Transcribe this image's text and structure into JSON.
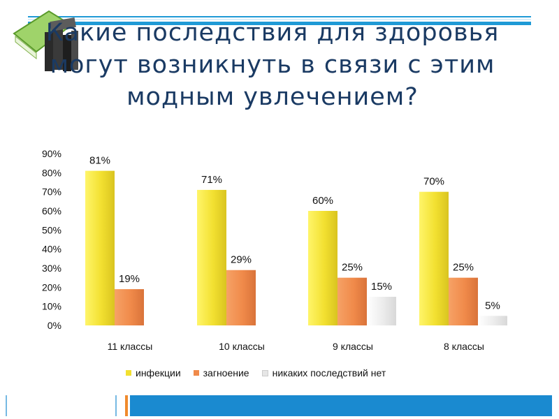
{
  "slide": {
    "title": "Какие последствия для здоровья могут возникнуть в связи с этим модным увлечением?"
  },
  "colors": {
    "accent": "#1f9ad6",
    "title": "#1a3a63",
    "infections": "#f2e030",
    "suppuration": "#f08a4a",
    "none": "#e6e6e6"
  },
  "icons": {
    "books": "books-icon"
  },
  "chart_data": {
    "type": "bar",
    "title": "",
    "xlabel": "",
    "ylabel": "",
    "categories": [
      "11 классы",
      "10 классы",
      "9 классы",
      "8 классы"
    ],
    "yticks": [
      "0%",
      "10%",
      "20%",
      "30%",
      "40%",
      "50%",
      "60%",
      "70%",
      "80%",
      "90%"
    ],
    "ylim": [
      0,
      90
    ],
    "grid": false,
    "legend_position": "bottom",
    "series": [
      {
        "name": "инфекции",
        "values": [
          81,
          71,
          60,
          70
        ],
        "labels": [
          "81%",
          "71%",
          "60%",
          "70%"
        ]
      },
      {
        "name": "загноение",
        "values": [
          19,
          29,
          25,
          25
        ],
        "labels": [
          "19%",
          "29%",
          "25%",
          "25%"
        ]
      },
      {
        "name": "никаких последствий нет",
        "values": [
          null,
          null,
          15,
          5
        ],
        "labels": [
          "",
          "",
          "15%",
          "5%"
        ]
      }
    ]
  }
}
